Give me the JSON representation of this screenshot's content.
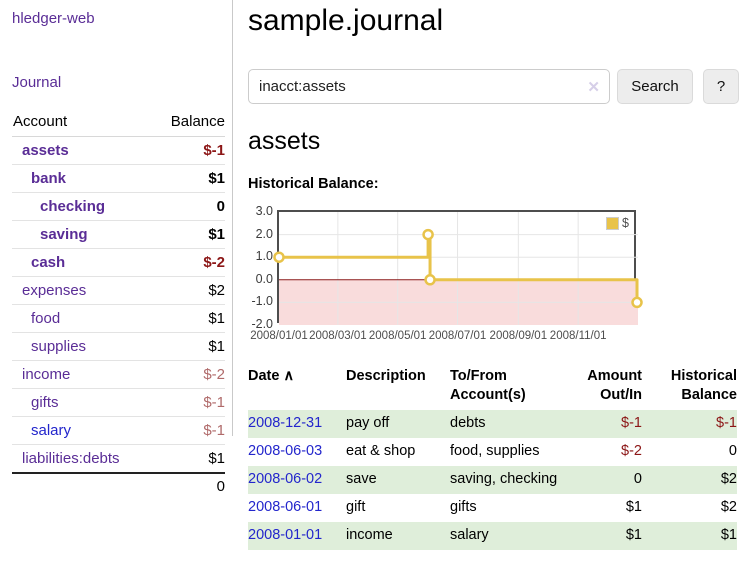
{
  "app": {
    "title": "hledger-web"
  },
  "sidebar": {
    "journal_link": "Journal",
    "header": {
      "account": "Account",
      "balance": "Balance"
    },
    "accounts": [
      {
        "name": "assets",
        "balance": "$-1"
      },
      {
        "name": "bank",
        "balance": "$1"
      },
      {
        "name": "checking",
        "balance": "0"
      },
      {
        "name": "saving",
        "balance": "$1"
      },
      {
        "name": "cash",
        "balance": "$-2"
      },
      {
        "name": "expenses",
        "balance": "$2"
      },
      {
        "name": "food",
        "balance": "$1"
      },
      {
        "name": "supplies",
        "balance": "$1"
      },
      {
        "name": "income",
        "balance": "$-2"
      },
      {
        "name": "gifts",
        "balance": "$-1"
      },
      {
        "name": "salary",
        "balance": "$-1"
      },
      {
        "name": "liabilities:debts",
        "balance": "$1"
      }
    ],
    "total": "0"
  },
  "main": {
    "title": "sample.journal",
    "search": {
      "value": "inacct:assets",
      "clear_icon": "✕",
      "button": "Search",
      "help_button": "?"
    },
    "account_heading": "assets",
    "chart_heading": "Historical Balance:"
  },
  "chart_data": {
    "type": "line",
    "title": "Historical Balance:",
    "legend": [
      {
        "label": "$",
        "color": "#e8c34a"
      }
    ],
    "x_range": [
      "2008-01-01",
      "2009-01-01"
    ],
    "ylim": [
      -2,
      3
    ],
    "yticks": [
      {
        "value": 3,
        "label": "3.0"
      },
      {
        "value": 2,
        "label": "2.0"
      },
      {
        "value": 1,
        "label": "1.0"
      },
      {
        "value": 0,
        "label": "0.0"
      },
      {
        "value": -1,
        "label": "-1.0"
      },
      {
        "value": -2,
        "label": "-2.0"
      }
    ],
    "xticks": [
      {
        "date": "2008-01-01",
        "label": "2008/01/01"
      },
      {
        "date": "2008-03-01",
        "label": "2008/03/01"
      },
      {
        "date": "2008-05-01",
        "label": "2008/05/01"
      },
      {
        "date": "2008-07-01",
        "label": "2008/07/01"
      },
      {
        "date": "2008-09-01",
        "label": "2008/09/01"
      },
      {
        "date": "2008-11-01",
        "label": "2008/11/01"
      }
    ],
    "series": [
      {
        "name": "$",
        "color": "#e8c34a",
        "step": true,
        "points": [
          [
            "2008-01-01",
            1
          ],
          [
            "2008-06-01",
            2
          ],
          [
            "2008-06-03",
            0
          ],
          [
            "2008-12-31",
            -1
          ]
        ]
      }
    ],
    "negative_region_color": "#f9dcdc",
    "zero_line_color": "#8b1a1a",
    "grid": true,
    "legend_position": "top-right"
  },
  "register": {
    "headers": {
      "date": "Date",
      "sort_icon": "∧",
      "description": "Description",
      "tofrom_line1": "To/From",
      "tofrom_line2": "Account(s)",
      "amount_line1": "Amount",
      "amount_line2": "Out/In",
      "hist_line1": "Historical",
      "hist_line2": "Balance"
    },
    "rows": [
      {
        "date": "2008-12-31",
        "description": "pay off",
        "accounts": "debts",
        "amount": "$-1",
        "balance": "$-1"
      },
      {
        "date": "2008-06-03",
        "description": "eat & shop",
        "accounts": "food, supplies",
        "amount": "$-2",
        "balance": "0"
      },
      {
        "date": "2008-06-02",
        "description": "save",
        "accounts": "saving, checking",
        "amount": "0",
        "balance": "$2"
      },
      {
        "date": "2008-06-01",
        "description": "gift",
        "accounts": "gifts",
        "amount": "$1",
        "balance": "$2"
      },
      {
        "date": "2008-01-01",
        "description": "income",
        "accounts": "salary",
        "amount": "$1",
        "balance": "$1"
      }
    ]
  },
  "colors": {
    "visited_link_purple": "#5a2d96",
    "link_blue": "#2326cc",
    "negative_strong": "#8c1616",
    "negative_muted": "#b06a6a",
    "row_green": "#dfeeda",
    "series_gold": "#e8c34a",
    "negative_region": "#f9dcdc",
    "zero_line": "#8b1a1a"
  }
}
